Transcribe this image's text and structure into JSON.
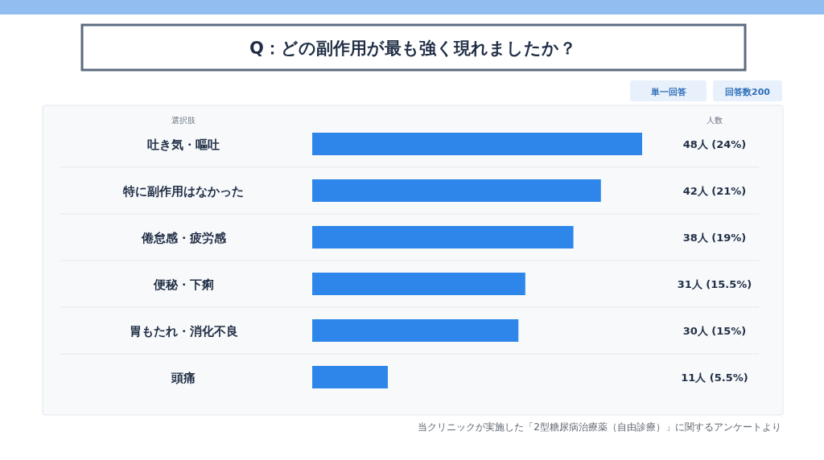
{
  "chart_data": {
    "type": "bar",
    "orientation": "horizontal",
    "title": "Q：どの副作用が最も強く現れましたか？",
    "ylabel": "選択肢",
    "categories": [
      "吐き気・嘔吐",
      "特に副作用はなかった",
      "倦怠感・疲労感",
      "便秘・下痢",
      "胃もたれ・消化不良",
      "頭痛"
    ],
    "values": [
      48,
      42,
      38,
      31,
      30,
      11
    ],
    "value_labels": [
      "48人 (24%)",
      "42人 (21%)",
      "38人 (19%)",
      "31人 (15.5%)",
      "30人 (15%)",
      "11人 (5.5%)"
    ],
    "color": "#2e86ea",
    "annotations": [
      "人数",
      "単一回答",
      "回答数200",
      "当クリニックが実施した「2型糖尿病治療薬（自由診療）」に関するアンケートより"
    ]
  }
}
